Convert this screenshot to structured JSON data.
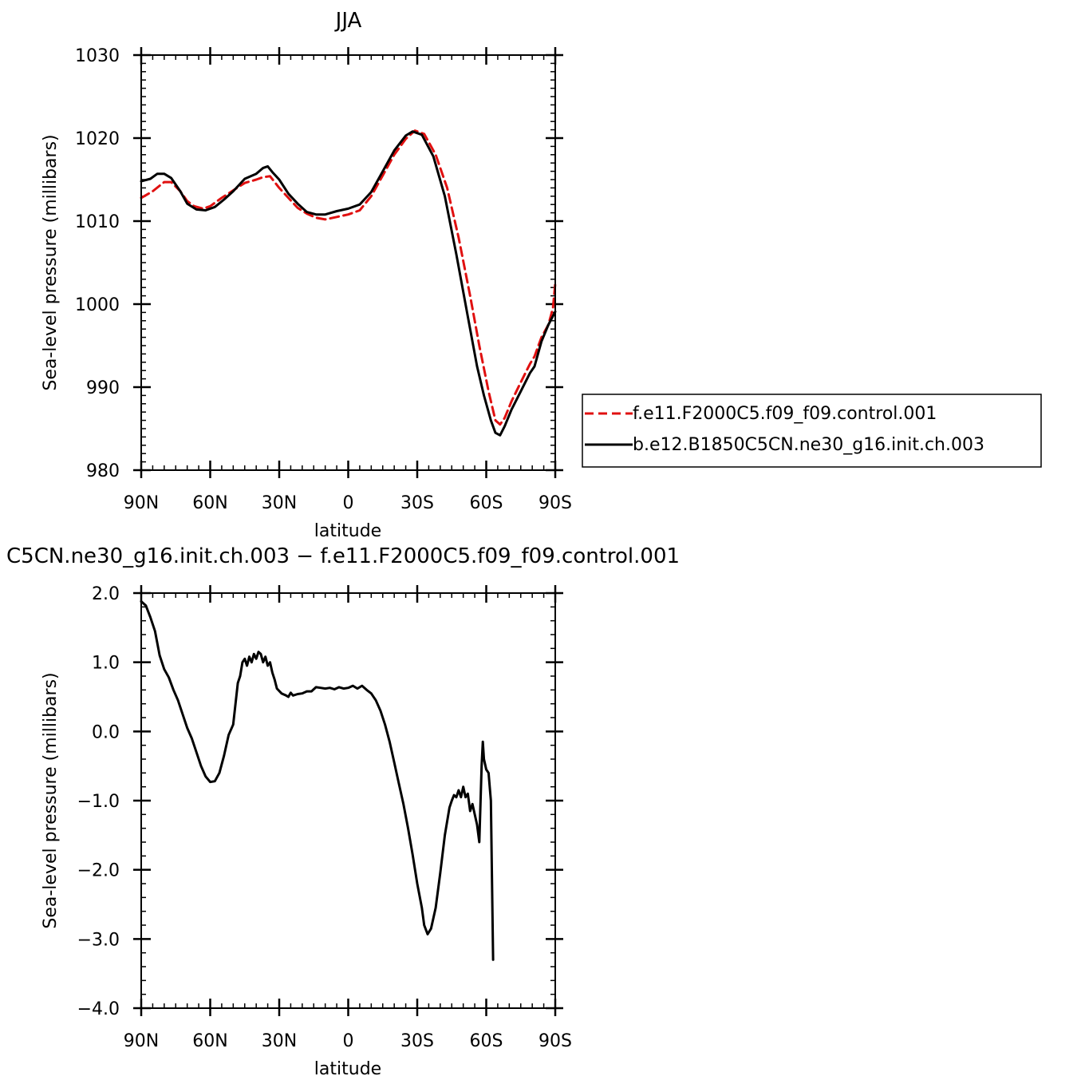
{
  "chart_data": [
    {
      "type": "line",
      "title": "JJA",
      "xlabel": "latitude",
      "ylabel": "Sea-level pressure (millibars)",
      "xlim": [
        90,
        -90
      ],
      "ylim": [
        980,
        1030
      ],
      "x_ticks": [
        {
          "value": 90,
          "label": "90N"
        },
        {
          "value": 60,
          "label": "60N"
        },
        {
          "value": 30,
          "label": "30N"
        },
        {
          "value": 0,
          "label": "0"
        },
        {
          "value": -30,
          "label": "30S"
        },
        {
          "value": -60,
          "label": "60S"
        },
        {
          "value": -90,
          "label": "90S"
        }
      ],
      "y_ticks": [
        {
          "value": 980,
          "label": "980"
        },
        {
          "value": 990,
          "label": "990"
        },
        {
          "value": 1000,
          "label": "1000"
        },
        {
          "value": 1010,
          "label": "1010"
        },
        {
          "value": 1020,
          "label": "1020"
        },
        {
          "value": 1030,
          "label": "1030"
        }
      ],
      "grid": false,
      "legend_position": "right",
      "series": [
        {
          "name": "f.e11.F2000C5.f09_f09.control.001",
          "color": "#e01010",
          "dash": "dashed",
          "points": [
            [
              90,
              1012.8
            ],
            [
              85,
              1013.6
            ],
            [
              80,
              1014.7
            ],
            [
              77,
              1014.7
            ],
            [
              73,
              1013.6
            ],
            [
              70,
              1012.4
            ],
            [
              67,
              1011.8
            ],
            [
              63,
              1011.5
            ],
            [
              60,
              1011.8
            ],
            [
              55,
              1012.8
            ],
            [
              50,
              1013.7
            ],
            [
              45,
              1014.6
            ],
            [
              40,
              1015.0
            ],
            [
              37,
              1015.3
            ],
            [
              34,
              1015.4
            ],
            [
              30,
              1014.0
            ],
            [
              26,
              1012.8
            ],
            [
              22,
              1011.6
            ],
            [
              18,
              1010.9
            ],
            [
              14,
              1010.4
            ],
            [
              10,
              1010.2
            ],
            [
              5,
              1010.5
            ],
            [
              0,
              1010.8
            ],
            [
              -5,
              1011.3
            ],
            [
              -10,
              1013.0
            ],
            [
              -15,
              1015.5
            ],
            [
              -20,
              1018.0
            ],
            [
              -25,
              1019.9
            ],
            [
              -29,
              1020.9
            ],
            [
              -33,
              1020.5
            ],
            [
              -38,
              1018.0
            ],
            [
              -43,
              1014.0
            ],
            [
              -48,
              1008.0
            ],
            [
              -53,
              1001.0
            ],
            [
              -57,
              995.0
            ],
            [
              -61,
              989.5
            ],
            [
              -64,
              986.0
            ],
            [
              -66,
              985.5
            ],
            [
              -68,
              986.3
            ],
            [
              -71,
              988.3
            ],
            [
              -75,
              990.6
            ],
            [
              -79,
              992.8
            ],
            [
              -81,
              993.7
            ],
            [
              -84,
              996.0
            ],
            [
              -87,
              997.5
            ],
            [
              -89,
              999.5
            ],
            [
              -90,
              1002.5
            ]
          ]
        },
        {
          "name": "b.e12.B1850C5CN.ne30_g16.init.ch.003",
          "color": "#000000",
          "dash": "solid",
          "points": [
            [
              90,
              1014.8
            ],
            [
              86,
              1015.1
            ],
            [
              83,
              1015.7
            ],
            [
              80,
              1015.7
            ],
            [
              77,
              1015.2
            ],
            [
              73,
              1013.6
            ],
            [
              70,
              1012.1
            ],
            [
              66,
              1011.4
            ],
            [
              62,
              1011.3
            ],
            [
              58,
              1011.7
            ],
            [
              54,
              1012.6
            ],
            [
              50,
              1013.6
            ],
            [
              45,
              1015.1
            ],
            [
              40,
              1015.7
            ],
            [
              37,
              1016.4
            ],
            [
              35,
              1016.6
            ],
            [
              33,
              1015.9
            ],
            [
              30,
              1015.0
            ],
            [
              26,
              1013.3
            ],
            [
              22,
              1012.1
            ],
            [
              18,
              1011.1
            ],
            [
              14,
              1010.8
            ],
            [
              10,
              1010.8
            ],
            [
              5,
              1011.2
            ],
            [
              0,
              1011.5
            ],
            [
              -5,
              1012.0
            ],
            [
              -10,
              1013.5
            ],
            [
              -15,
              1016.0
            ],
            [
              -20,
              1018.5
            ],
            [
              -25,
              1020.3
            ],
            [
              -28,
              1020.8
            ],
            [
              -32,
              1020.4
            ],
            [
              -37,
              1017.8
            ],
            [
              -42,
              1013.0
            ],
            [
              -47,
              1006.0
            ],
            [
              -52,
              998.5
            ],
            [
              -56,
              992.5
            ],
            [
              -59,
              989.0
            ],
            [
              -62,
              986.0
            ],
            [
              -64,
              984.5
            ],
            [
              -66,
              984.2
            ],
            [
              -68,
              985.3
            ],
            [
              -71,
              987.3
            ],
            [
              -75,
              989.5
            ],
            [
              -79,
              991.7
            ],
            [
              -81,
              992.5
            ],
            [
              -84,
              995.5
            ],
            [
              -87,
              997.5
            ],
            [
              -90,
              999.1
            ]
          ]
        }
      ]
    },
    {
      "type": "line",
      "title": "C5CN.ne30_g16.init.ch.003 − f.e11.F2000C5.f09_f09.control.001",
      "xlabel": "latitude",
      "ylabel": "Sea-level pressure (millibars)",
      "xlim": [
        90,
        -90
      ],
      "ylim": [
        -4.0,
        2.0
      ],
      "x_ticks": [
        {
          "value": 90,
          "label": "90N"
        },
        {
          "value": 60,
          "label": "60N"
        },
        {
          "value": 30,
          "label": "30N"
        },
        {
          "value": 0,
          "label": "0"
        },
        {
          "value": -30,
          "label": "30S"
        },
        {
          "value": -60,
          "label": "60S"
        },
        {
          "value": -90,
          "label": "90S"
        }
      ],
      "y_ticks": [
        {
          "value": -4.0,
          "label": "−4.0"
        },
        {
          "value": -3.0,
          "label": "−3.0"
        },
        {
          "value": -2.0,
          "label": "−2.0"
        },
        {
          "value": -1.0,
          "label": "−1.0"
        },
        {
          "value": 0.0,
          "label": "0.0"
        },
        {
          "value": 1.0,
          "label": "1.0"
        },
        {
          "value": 2.0,
          "label": "2.0"
        }
      ],
      "grid": false,
      "series": [
        {
          "color": "#000000",
          "dash": "solid",
          "points": [
            [
              90,
              1.88
            ],
            [
              88,
              1.82
            ],
            [
              86,
              1.65
            ],
            [
              84,
              1.45
            ],
            [
              82,
              1.1
            ],
            [
              80,
              0.9
            ],
            [
              78,
              0.78
            ],
            [
              76,
              0.6
            ],
            [
              74,
              0.45
            ],
            [
              72,
              0.25
            ],
            [
              70,
              0.05
            ],
            [
              68,
              -0.1
            ],
            [
              66,
              -0.3
            ],
            [
              64,
              -0.5
            ],
            [
              62,
              -0.65
            ],
            [
              60,
              -0.73
            ],
            [
              58,
              -0.72
            ],
            [
              56,
              -0.6
            ],
            [
              54,
              -0.35
            ],
            [
              52,
              -0.05
            ],
            [
              50,
              0.1
            ],
            [
              49,
              0.4
            ],
            [
              48,
              0.7
            ],
            [
              47,
              0.8
            ],
            [
              46,
              1.0
            ],
            [
              45,
              1.05
            ],
            [
              44,
              0.95
            ],
            [
              43,
              1.08
            ],
            [
              42,
              1.0
            ],
            [
              41,
              1.12
            ],
            [
              40,
              1.05
            ],
            [
              39,
              1.15
            ],
            [
              38,
              1.12
            ],
            [
              37,
              1.0
            ],
            [
              36,
              1.08
            ],
            [
              35,
              0.95
            ],
            [
              34,
              1.0
            ],
            [
              33,
              0.85
            ],
            [
              32,
              0.75
            ],
            [
              31,
              0.62
            ],
            [
              29,
              0.55
            ],
            [
              27,
              0.52
            ],
            [
              26,
              0.5
            ],
            [
              25,
              0.56
            ],
            [
              24,
              0.52
            ],
            [
              22,
              0.54
            ],
            [
              20,
              0.55
            ],
            [
              18,
              0.58
            ],
            [
              16,
              0.58
            ],
            [
              14,
              0.64
            ],
            [
              12,
              0.63
            ],
            [
              10,
              0.62
            ],
            [
              8,
              0.63
            ],
            [
              6,
              0.61
            ],
            [
              4,
              0.64
            ],
            [
              2,
              0.62
            ],
            [
              0,
              0.63
            ],
            [
              -2,
              0.66
            ],
            [
              -4,
              0.62
            ],
            [
              -6,
              0.66
            ],
            [
              -8,
              0.6
            ],
            [
              -10,
              0.55
            ],
            [
              -12,
              0.45
            ],
            [
              -14,
              0.3
            ],
            [
              -16,
              0.1
            ],
            [
              -18,
              -0.15
            ],
            [
              -20,
              -0.45
            ],
            [
              -22,
              -0.75
            ],
            [
              -24,
              -1.05
            ],
            [
              -26,
              -1.4
            ],
            [
              -28,
              -1.78
            ],
            [
              -30,
              -2.2
            ],
            [
              -32,
              -2.55
            ],
            [
              -33,
              -2.8
            ],
            [
              -34.5,
              -2.93
            ],
            [
              -36,
              -2.85
            ],
            [
              -38,
              -2.55
            ],
            [
              -40,
              -2.05
            ],
            [
              -42,
              -1.5
            ],
            [
              -44,
              -1.1
            ],
            [
              -45,
              -1.0
            ],
            [
              -46,
              -0.92
            ],
            [
              -47,
              -0.95
            ],
            [
              -48,
              -0.85
            ],
            [
              -49,
              -0.95
            ],
            [
              -50,
              -0.8
            ],
            [
              -51,
              -0.95
            ],
            [
              -52,
              -0.9
            ],
            [
              -53,
              -1.15
            ],
            [
              -54,
              -1.05
            ],
            [
              -55,
              -1.2
            ],
            [
              -56,
              -1.35
            ],
            [
              -57,
              -1.6
            ],
            [
              -58,
              -0.5
            ],
            [
              -58.5,
              -0.15
            ],
            [
              -59,
              -0.4
            ],
            [
              -60,
              -0.55
            ],
            [
              -61,
              -0.6
            ],
            [
              -62,
              -1.0
            ],
            [
              -63,
              -3.3
            ]
          ]
        }
      ]
    }
  ]
}
